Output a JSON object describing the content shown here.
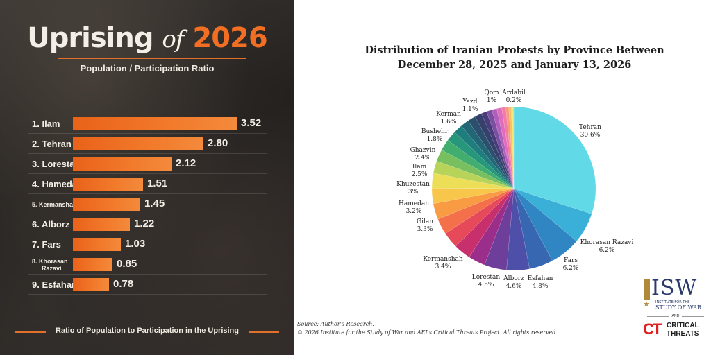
{
  "left_panel": {
    "title_word1": "Uprising",
    "title_word2": "of",
    "title_word3": "2026",
    "subtitle": "Population / Participation Ratio",
    "footer": "Ratio of Population to Participation in the Uprising",
    "accent_color": "#f26e22"
  },
  "chart_data": [
    {
      "type": "bar",
      "orientation": "horizontal",
      "title": "Uprising of 2026",
      "subtitle": "Population / Participation Ratio",
      "xlabel": "Ratio of Population to Participation in the Uprising",
      "categories": [
        "1. Ilam",
        "2. Tehran",
        "3. Lorestan",
        "4. Hamedan",
        "5. Kermanshah",
        "6. Alborz",
        "7. Fars",
        "8. Khorasan Razavi",
        "9. Esfahan"
      ],
      "values": [
        3.52,
        2.8,
        2.12,
        1.51,
        1.45,
        1.22,
        1.03,
        0.85,
        0.78
      ],
      "value_labels": [
        "3.52",
        "2.80",
        "2.12",
        "1.51",
        "1.45",
        "1.22",
        "1.03",
        "0.85",
        "0.78"
      ],
      "label_lines": [
        [
          "1. Ilam"
        ],
        [
          "2. Tehran"
        ],
        [
          "3. Lorestan"
        ],
        [
          "4. Hamedan"
        ],
        [
          "5. Kermanshah"
        ],
        [
          "6. Alborz"
        ],
        [
          "7. Fars"
        ],
        [
          "8. Khorasan",
          "Razavi"
        ],
        [
          "9. Esfahan"
        ]
      ],
      "xlim": [
        0,
        3.52
      ],
      "bar_color": "#f27a2b"
    },
    {
      "type": "pie",
      "title_line1": "Distribution of Iranian Protests by Province Between",
      "title_line2": "December 28, 2025 and January 13, 2026",
      "slices": [
        {
          "label": "Tehran",
          "pct": "30.6%",
          "value": 30.6,
          "color": "#62d9e6",
          "show": true
        },
        {
          "label": "Khorasan Razavi",
          "pct": "6.2%",
          "value": 6.2,
          "color": "#3ab0d8",
          "show": true
        },
        {
          "label": "Fars",
          "pct": "6.2%",
          "value": 6.2,
          "color": "#2f86c2",
          "show": true
        },
        {
          "label": "Esfahan",
          "pct": "4.8%",
          "value": 4.8,
          "color": "#3867b2",
          "show": true
        },
        {
          "label": "Alborz",
          "pct": "4.6%",
          "value": 4.6,
          "color": "#4e4fa8",
          "show": true
        },
        {
          "label": "Lorestan",
          "pct": "4.5%",
          "value": 4.5,
          "color": "#6d3f9b",
          "show": true
        },
        {
          "label": "Kermanshah",
          "pct": "3.4%",
          "value": 3.4,
          "color": "#9a2e8a",
          "show": true
        },
        {
          "label": "",
          "pct": "",
          "value": 3.4,
          "color": "#c72f6d",
          "show": false
        },
        {
          "label": "Gilan",
          "pct": "3.3%",
          "value": 3.3,
          "color": "#e64a5a",
          "show": true
        },
        {
          "label": "",
          "pct": "",
          "value": 3.2,
          "color": "#f4704a",
          "show": false
        },
        {
          "label": "Hamedan",
          "pct": "3.2%",
          "value": 3.2,
          "color": "#f89b43",
          "show": true
        },
        {
          "label": "",
          "pct": "",
          "value": 3.1,
          "color": "#f8c64a",
          "show": false
        },
        {
          "label": "Khuzestan",
          "pct": "3%",
          "value": 3.0,
          "color": "#ecdf57",
          "show": true
        },
        {
          "label": "Ilam",
          "pct": "2.5%",
          "value": 2.5,
          "color": "#b7d35a",
          "show": true
        },
        {
          "label": "Ghazvin",
          "pct": "2.4%",
          "value": 2.4,
          "color": "#78c05f",
          "show": true
        },
        {
          "label": "",
          "pct": "",
          "value": 2.3,
          "color": "#41ad6e",
          "show": false
        },
        {
          "label": "",
          "pct": "",
          "value": 2.1,
          "color": "#26977a",
          "show": false
        },
        {
          "label": "Bushehr",
          "pct": "1.8%",
          "value": 1.8,
          "color": "#1f7d7e",
          "show": true
        },
        {
          "label": "",
          "pct": "",
          "value": 1.7,
          "color": "#236675",
          "show": false
        },
        {
          "label": "Kerman",
          "pct": "1.6%",
          "value": 1.6,
          "color": "#2b4f6c",
          "show": true
        },
        {
          "label": "",
          "pct": "",
          "value": 1.4,
          "color": "#36406c",
          "show": false
        },
        {
          "label": "Yazd",
          "pct": "1.1%",
          "value": 1.1,
          "color": "#4a3c7a",
          "show": true
        },
        {
          "label": "",
          "pct": "",
          "value": 1.1,
          "color": "#7a4fa0",
          "show": false
        },
        {
          "label": "",
          "pct": "",
          "value": 1.0,
          "color": "#b05fbb",
          "show": false
        },
        {
          "label": "Qom",
          "pct": "1%",
          "value": 1.0,
          "color": "#e16cbc",
          "show": true
        },
        {
          "label": "",
          "pct": "",
          "value": 0.8,
          "color": "#f27ca2",
          "show": false
        },
        {
          "label": "",
          "pct": "",
          "value": 0.6,
          "color": "#f79a7f",
          "show": false
        },
        {
          "label": "",
          "pct": "",
          "value": 0.5,
          "color": "#f8c163",
          "show": false
        },
        {
          "label": "",
          "pct": "",
          "value": 0.3,
          "color": "#f4e25a",
          "show": false
        },
        {
          "label": "Ardabil",
          "pct": "0.2%",
          "value": 0.2,
          "color": "#d6e864",
          "show": true
        }
      ]
    }
  ],
  "source": {
    "line1": "Source: Author's Research.",
    "line2": "© 2026 Institute for the Study of War and AEI's Critical Threats Project. All rights reserved."
  },
  "logos": {
    "isw_letters": "ISW",
    "isw_line1": "INSTITUTE FOR THE",
    "isw_line2": "STUDY OF WAR",
    "and_text": "AND",
    "ct_mark": "CT",
    "ct_line1": "CRITICAL",
    "ct_line2": "THREATS",
    "isw_color": "#2a3a6a",
    "ct_color": "#e02020"
  }
}
